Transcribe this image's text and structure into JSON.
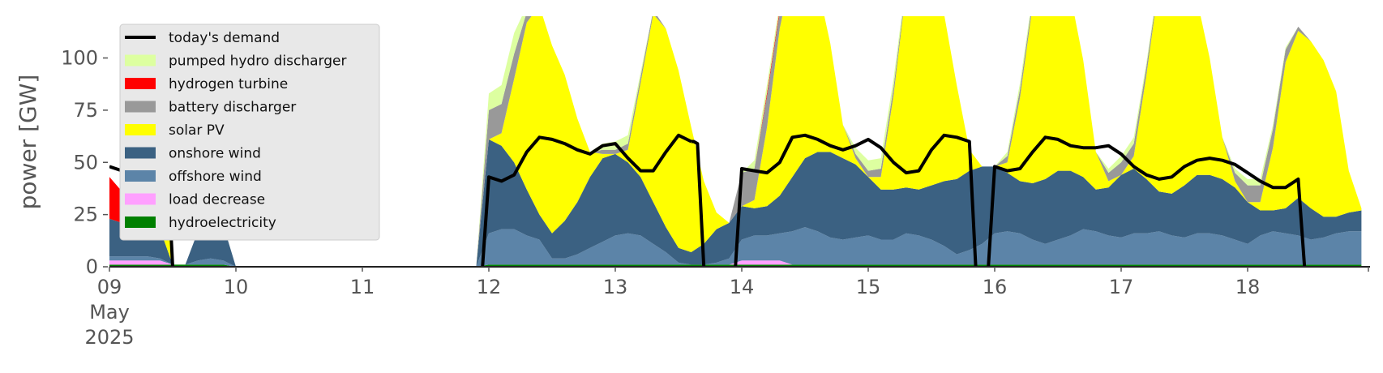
{
  "chart_data": {
    "type": "area",
    "ylabel": "power [GW]",
    "xlabel": "",
    "ylim": [
      0,
      120
    ],
    "xlim": [
      0,
      9.95
    ],
    "x_unit": "days since 09 May 2025 00:00",
    "x_ticks": [
      {
        "x": 0,
        "lines": [
          "09",
          "May",
          "2025"
        ]
      },
      {
        "x": 1,
        "lines": [
          "10"
        ]
      },
      {
        "x": 2,
        "lines": [
          "11"
        ]
      },
      {
        "x": 3,
        "lines": [
          "12"
        ]
      },
      {
        "x": 4,
        "lines": [
          "13"
        ]
      },
      {
        "x": 5,
        "lines": [
          "14"
        ]
      },
      {
        "x": 6,
        "lines": [
          "15"
        ]
      },
      {
        "x": 7,
        "lines": [
          "16"
        ]
      },
      {
        "x": 8,
        "lines": [
          "17"
        ]
      },
      {
        "x": 9,
        "lines": [
          "18"
        ]
      }
    ],
    "y_ticks": [
      0,
      25,
      50,
      75,
      100
    ],
    "grid": false,
    "legend_position": "top-left",
    "x": [
      0.0,
      0.1,
      0.2,
      0.3,
      0.4,
      0.5,
      0.6,
      0.7,
      0.8,
      0.9,
      1.0,
      1.1,
      1.2,
      1.3,
      1.4,
      1.5,
      1.6,
      1.7,
      1.8,
      1.9,
      2.0,
      2.1,
      2.2,
      2.3,
      2.4,
      2.5,
      2.6,
      2.7,
      2.8,
      2.9,
      3.0,
      3.1,
      3.2,
      3.3,
      3.4,
      3.5,
      3.6,
      3.7,
      3.8,
      3.9,
      4.0,
      4.1,
      4.2,
      4.3,
      4.4,
      4.5,
      4.6,
      4.7,
      4.8,
      4.9,
      5.0,
      5.1,
      5.2,
      5.3,
      5.4,
      5.5,
      5.6,
      5.7,
      5.8,
      5.9,
      6.0,
      6.1,
      6.2,
      6.3,
      6.4,
      6.5,
      6.6,
      6.7,
      6.8,
      6.9,
      7.0,
      7.1,
      7.2,
      7.3,
      7.4,
      7.5,
      7.6,
      7.7,
      7.8,
      7.9,
      8.0,
      8.1,
      8.2,
      8.3,
      8.4,
      8.5,
      8.6,
      8.7,
      8.8,
      8.9,
      9.0,
      9.1,
      9.2,
      9.3,
      9.4,
      9.5,
      9.6,
      9.7,
      9.8,
      9.9
    ],
    "series": [
      {
        "name": "hydroelectricity",
        "color": "#008000",
        "values": [
          1.0,
          1.0,
          1.0,
          1.0,
          1.0,
          1.0,
          1.0,
          1.0,
          1.0,
          1.0,
          0.0,
          0.0,
          0.0,
          0.0,
          0.0,
          0.0,
          0.0,
          0.0,
          0.0,
          0.0,
          0.0,
          0.0,
          0.0,
          0.0,
          0.0,
          0.0,
          0.0,
          0.0,
          0.0,
          0.0,
          1.0,
          1.0,
          1.0,
          1.0,
          1.0,
          1.0,
          1.0,
          1.0,
          1.0,
          1.0,
          1.0,
          1.0,
          1.0,
          1.0,
          1.0,
          1.0,
          1.0,
          1.0,
          1.0,
          1.0,
          1.0,
          1.0,
          1.0,
          1.0,
          1.0,
          1.0,
          1.0,
          1.0,
          1.0,
          1.0,
          1.0,
          1.0,
          1.0,
          1.0,
          1.0,
          1.0,
          1.0,
          1.0,
          1.0,
          1.0,
          1.0,
          1.0,
          1.0,
          1.0,
          1.0,
          1.0,
          1.0,
          1.0,
          1.0,
          1.0,
          1.0,
          1.0,
          1.0,
          1.0,
          1.0,
          1.0,
          1.0,
          1.0,
          1.0,
          1.0,
          1.0,
          1.0,
          1.0,
          1.0,
          1.0,
          1.0,
          1.0,
          1.0,
          1.0,
          1.0
        ]
      },
      {
        "name": "load decrease",
        "color": "#ffa0ff",
        "values": [
          2.0,
          2.0,
          2.0,
          2.0,
          2.0,
          0.0,
          0.0,
          0.0,
          0.0,
          0.0,
          0.0,
          0.0,
          0.0,
          0.0,
          0.0,
          0.0,
          0.0,
          0.0,
          0.0,
          0.0,
          0.0,
          0.0,
          0.0,
          0.0,
          0.0,
          0.0,
          0.0,
          0.0,
          0.0,
          0.0,
          0.0,
          0.0,
          0.0,
          0.0,
          0.0,
          0.0,
          0.0,
          0.0,
          0.0,
          0.0,
          0.0,
          0.0,
          0.0,
          0.0,
          0.0,
          0.0,
          0.0,
          0.0,
          0.0,
          0.0,
          2.0,
          2.0,
          2.0,
          2.0,
          0.0,
          0.0,
          0.0,
          0.0,
          0.0,
          0.0,
          0.0,
          0.0,
          0.0,
          0.0,
          0.0,
          0.0,
          0.0,
          0.0,
          0.0,
          0.0,
          0.0,
          0.0,
          0.0,
          0.0,
          0.0,
          0.0,
          0.0,
          0.0,
          0.0,
          0.0,
          0.0,
          0.0,
          0.0,
          0.0,
          0.0,
          0.0,
          0.0,
          0.0,
          0.0,
          0.0,
          0.0,
          0.0,
          0.0,
          0.0,
          0.0,
          0.0,
          0.0,
          0.0,
          0.0,
          0.0
        ]
      },
      {
        "name": "offshore wind",
        "color": "#5c84a8",
        "values": [
          2.0,
          2.0,
          2.0,
          2.0,
          1.0,
          0.0,
          0.0,
          2.0,
          3.0,
          2.0,
          0.0,
          0.0,
          0.0,
          0.0,
          0.0,
          0.0,
          0.0,
          0.0,
          0.0,
          0.0,
          0.0,
          0.0,
          0.0,
          0.0,
          0.0,
          0.0,
          0.0,
          0.0,
          0.0,
          0.0,
          15.0,
          17.0,
          17.0,
          14.0,
          12.0,
          3.0,
          3.0,
          5.0,
          8.0,
          11.0,
          14.0,
          15.0,
          14.0,
          10.0,
          6.0,
          1.0,
          0.0,
          0.0,
          1.0,
          3.0,
          10.0,
          12.0,
          12.0,
          13.0,
          16.0,
          18.0,
          16.0,
          13.0,
          12.0,
          13.0,
          14.0,
          12.0,
          12.0,
          15.0,
          14.0,
          12.0,
          9.0,
          5.0,
          7.0,
          10.0,
          15.0,
          16.0,
          15.0,
          12.0,
          10.0,
          12.0,
          14.0,
          17.0,
          16.0,
          14.0,
          13.0,
          15.0,
          15.0,
          16.0,
          14.0,
          13.0,
          15.0,
          15.0,
          14.0,
          12.0,
          10.0,
          14.0,
          16.0,
          15.0,
          14.0,
          12.0,
          13.0,
          15.0,
          16.0,
          16.0
        ]
      },
      {
        "name": "onshore wind",
        "color": "#3b6182",
        "values": [
          18.0,
          16.0,
          15.0,
          14.0,
          14.0,
          0.0,
          0.0,
          14.0,
          16.0,
          17.0,
          0.0,
          0.0,
          0.0,
          0.0,
          0.0,
          0.0,
          0.0,
          0.0,
          0.0,
          0.0,
          0.0,
          0.0,
          0.0,
          0.0,
          0.0,
          0.0,
          0.0,
          0.0,
          0.0,
          0.0,
          45.0,
          40.0,
          32.0,
          22.0,
          12.0,
          12.0,
          18.0,
          25.0,
          34.0,
          40.0,
          39.0,
          34.0,
          28.0,
          20.0,
          12.0,
          7.0,
          6.0,
          10.0,
          16.0,
          17.0,
          16.0,
          13.0,
          14.0,
          18.0,
          26.0,
          33.0,
          38.0,
          41.0,
          39.0,
          35.0,
          28.0,
          24.0,
          24.0,
          22.0,
          22.0,
          26.0,
          31.0,
          36.0,
          38.0,
          37.0,
          32.0,
          28.0,
          25.0,
          27.0,
          31.0,
          33.0,
          31.0,
          25.0,
          20.0,
          23.0,
          30.0,
          31.0,
          26.0,
          19.0,
          20.0,
          25.0,
          28.0,
          28.0,
          27.0,
          25.0,
          20.0,
          12.0,
          10.0,
          12.0,
          18.0,
          15.0,
          10.0,
          8.0,
          9.0,
          10.0
        ]
      },
      {
        "name": "solar PV",
        "color": "#ffff00",
        "values": [
          0.0,
          0.0,
          0.0,
          4.0,
          40.0,
          0.0,
          0.0,
          0.0,
          0.0,
          0.0,
          0.0,
          0.0,
          0.0,
          0.0,
          0.0,
          0.0,
          0.0,
          0.0,
          0.0,
          0.0,
          0.0,
          0.0,
          0.0,
          0.0,
          0.0,
          0.0,
          0.0,
          0.0,
          0.0,
          0.0,
          0.0,
          6.0,
          40.0,
          80.0,
          100.0,
          90.0,
          70.0,
          40.0,
          12.0,
          2.0,
          0.0,
          6.0,
          45.0,
          90.0,
          95.0,
          85.0,
          60.0,
          30.0,
          8.0,
          0.0,
          0.0,
          4.0,
          38.0,
          80.0,
          100.0,
          98.0,
          80.0,
          52.0,
          16.0,
          3.0,
          0.0,
          6.0,
          45.0,
          95.0,
          100.0,
          100.0,
          80.0,
          45.0,
          10.0,
          0.0,
          0.0,
          5.0,
          40.0,
          85.0,
          100.0,
          100.0,
          84.0,
          56.0,
          18.0,
          3.0,
          0.0,
          6.0,
          50.0,
          100.0,
          100.0,
          100.0,
          84.0,
          56.0,
          20.0,
          3.0,
          0.0,
          4.0,
          30.0,
          70.0,
          80.0,
          80.0,
          75.0,
          60.0,
          20.0,
          1.0
        ]
      },
      {
        "name": "battery discharger",
        "color": "#999999",
        "values": [
          0.0,
          0.0,
          0.0,
          0.0,
          0.0,
          0.0,
          0.0,
          0.0,
          0.0,
          0.0,
          0.0,
          0.0,
          0.0,
          0.0,
          0.0,
          0.0,
          0.0,
          0.0,
          0.0,
          0.0,
          0.0,
          0.0,
          0.0,
          0.0,
          0.0,
          0.0,
          0.0,
          0.0,
          0.0,
          0.0,
          14.0,
          14.0,
          12.0,
          5.0,
          0.0,
          0.0,
          0.0,
          0.0,
          0.0,
          2.0,
          2.0,
          3.0,
          3.0,
          2.0,
          0.0,
          0.0,
          0.0,
          0.0,
          0.0,
          0.0,
          16.0,
          15.0,
          15.0,
          8.0,
          0.0,
          0.0,
          0.0,
          0.0,
          0.0,
          2.0,
          3.0,
          4.0,
          4.0,
          2.0,
          0.0,
          0.0,
          0.0,
          0.0,
          0.0,
          0.0,
          0.0,
          3.0,
          4.0,
          3.0,
          0.0,
          0.0,
          0.0,
          0.0,
          0.0,
          4.0,
          6.0,
          6.0,
          4.0,
          2.0,
          0.0,
          0.0,
          0.0,
          0.0,
          0.0,
          4.0,
          8.0,
          8.0,
          9.0,
          6.0,
          2.0,
          0.0,
          0.0,
          0.0,
          0.0,
          0.0
        ]
      },
      {
        "name": "hydrogen turbine",
        "color": "#ff0000",
        "values": [
          20.0,
          15.0,
          8.0,
          0.0,
          0.0,
          0.0,
          0.0,
          0.0,
          0.0,
          0.0,
          0.0,
          0.0,
          0.0,
          0.0,
          0.0,
          0.0,
          0.0,
          0.0,
          0.0,
          0.0,
          0.0,
          0.0,
          0.0,
          0.0,
          0.0,
          0.0,
          0.0,
          0.0,
          0.0,
          0.0,
          0.0,
          0.0,
          0.0,
          0.0,
          0.0,
          0.0,
          0.0,
          0.0,
          0.0,
          0.0,
          0.0,
          0.0,
          0.0,
          0.0,
          0.0,
          0.0,
          0.0,
          0.0,
          0.0,
          0.0,
          0.0,
          0.0,
          1.5,
          1.5,
          0.0,
          0.0,
          0.0,
          0.0,
          0.0,
          0.0,
          0.0,
          0.0,
          0.0,
          0.0,
          0.0,
          0.0,
          0.0,
          0.0,
          0.0,
          0.0,
          0.0,
          0.0,
          0.0,
          0.0,
          0.0,
          0.0,
          0.0,
          0.0,
          0.0,
          0.0,
          0.0,
          0.0,
          0.0,
          0.0,
          0.0,
          0.0,
          0.0,
          0.0,
          0.0,
          0.0,
          0.0,
          0.0,
          0.0,
          0.0,
          0.0,
          0.0,
          0.0,
          0.0,
          0.0,
          0.0
        ]
      },
      {
        "name": "pumped hydro discharger",
        "color": "#ddffa0",
        "values": [
          0.0,
          0.0,
          0.0,
          0.0,
          0.0,
          0.0,
          0.0,
          0.0,
          0.0,
          0.0,
          0.0,
          0.0,
          0.0,
          0.0,
          0.0,
          0.0,
          0.0,
          0.0,
          0.0,
          0.0,
          0.0,
          0.0,
          0.0,
          0.0,
          0.0,
          0.0,
          0.0,
          0.0,
          0.0,
          0.0,
          8.0,
          9.0,
          10.0,
          3.0,
          0.0,
          0.0,
          0.0,
          0.0,
          0.0,
          3.0,
          4.0,
          4.0,
          2.0,
          0.0,
          0.0,
          0.0,
          0.0,
          0.0,
          0.0,
          0.0,
          0.0,
          4.0,
          4.0,
          3.0,
          0.0,
          0.0,
          0.0,
          0.0,
          0.0,
          3.0,
          5.0,
          5.0,
          4.0,
          2.0,
          0.0,
          0.0,
          0.0,
          0.0,
          0.0,
          0.0,
          0.0,
          2.0,
          3.0,
          2.0,
          0.0,
          0.0,
          0.0,
          0.0,
          0.0,
          2.0,
          3.0,
          3.0,
          2.0,
          1.0,
          0.0,
          0.0,
          0.0,
          0.0,
          0.0,
          2.0,
          3.0,
          3.0,
          2.0,
          1.0,
          0.0,
          0.0,
          0.0,
          0.0,
          0.0,
          0.0
        ]
      }
    ],
    "demand": {
      "name": "today's demand",
      "color": "#000000",
      "segments": [
        {
          "x": [
            0.0,
            0.1,
            0.2,
            0.3,
            0.4,
            0.45,
            0.5
          ],
          "y": [
            48,
            46,
            47,
            55,
            58,
            60,
            0
          ]
        },
        {
          "x": [
            2.95,
            3.0,
            3.1,
            3.2,
            3.3,
            3.4,
            3.5,
            3.6,
            3.7,
            3.8,
            3.9,
            4.0,
            4.1,
            4.2,
            4.3,
            4.4,
            4.5,
            4.6
          ],
          "y": [
            0,
            43,
            41,
            44,
            55,
            62,
            61,
            59,
            56,
            54,
            58,
            59,
            52,
            46,
            46,
            55,
            63,
            60
          ]
        },
        {
          "x": [
            4.6,
            4.62,
            4.65,
            4.7
          ],
          "y": [
            60,
            60,
            59,
            0
          ]
        },
        {
          "x": [
            4.95,
            5.0,
            5.1,
            5.2,
            5.3,
            5.4,
            5.5,
            5.6,
            5.7,
            5.8,
            5.9,
            6.0,
            6.1,
            6.2,
            6.3,
            6.4,
            6.5,
            6.6,
            6.7,
            6.8,
            6.85
          ],
          "y": [
            0,
            47,
            46,
            45,
            50,
            62,
            63,
            61,
            58,
            56,
            58,
            61,
            57,
            50,
            45,
            46,
            56,
            63,
            62,
            60,
            0
          ]
        },
        {
          "x": [
            6.95,
            7.0,
            7.1,
            7.2,
            7.3,
            7.4,
            7.5,
            7.6,
            7.7,
            7.8,
            7.9,
            8.0,
            8.1,
            8.2,
            8.3,
            8.4,
            8.5,
            8.6,
            8.7,
            8.8,
            8.9,
            9.0,
            9.1,
            9.2,
            9.3,
            9.4,
            9.45
          ],
          "y": [
            0,
            48,
            46,
            47,
            55,
            62,
            61,
            58,
            57,
            57,
            58,
            54,
            48,
            44,
            42,
            43,
            48,
            51,
            52,
            51,
            49,
            45,
            41,
            38,
            38,
            42,
            0
          ]
        }
      ]
    },
    "legend_entries": [
      "today's demand",
      "pumped hydro discharger",
      "hydrogen turbine",
      "battery discharger",
      "solar PV",
      "onshore wind",
      "offshore wind",
      "load decrease",
      "hydroelectricity"
    ]
  }
}
